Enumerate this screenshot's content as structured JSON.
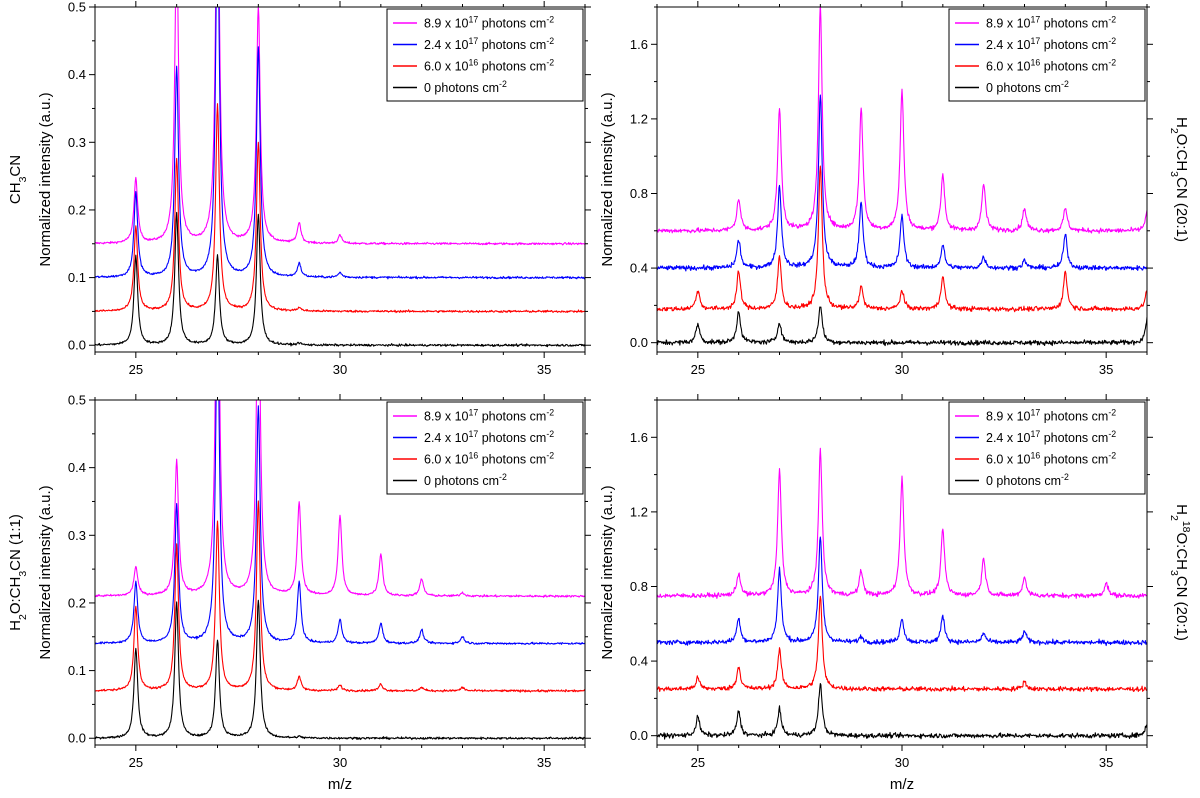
{
  "xlabel": "m/z",
  "chart_data": [
    {
      "type": "line",
      "panel": "top-left",
      "side_label": [
        "CH",
        "3",
        "CN"
      ],
      "xlabel": "",
      "ylabel": "Normalized intensity (a.u.)",
      "xlim": [
        24,
        36
      ],
      "ylim": [
        -0.01,
        0.5
      ],
      "xticks": [
        25,
        30,
        35
      ],
      "yticks": [
        0.0,
        0.1,
        0.2,
        0.3,
        0.4,
        0.5
      ],
      "ytick_labels": [
        "0.0",
        "0.1",
        "0.2",
        "0.3",
        "0.4",
        "0.5"
      ],
      "legend": "top-right",
      "noise": 0.0015,
      "series": [
        {
          "name": [
            "8.9 x 10",
            "17",
            " photons cm",
            "-2"
          ],
          "color": "#ff00ff",
          "baseline": 0.15,
          "peaks": [
            [
              25,
              0.095
            ],
            [
              26,
              0.45
            ],
            [
              27,
              0.6
            ],
            [
              28,
              0.35
            ],
            [
              29,
              0.03
            ],
            [
              30,
              0.012
            ]
          ]
        },
        {
          "name": [
            "2.4 x 10",
            "17",
            " photons cm",
            "-2"
          ],
          "color": "#0000ff",
          "baseline": 0.1,
          "peaks": [
            [
              25,
              0.125
            ],
            [
              26,
              0.31
            ],
            [
              27,
              0.55
            ],
            [
              28,
              0.34
            ],
            [
              29,
              0.02
            ],
            [
              30,
              0.007
            ]
          ]
        },
        {
          "name": [
            "6.0 x 10",
            "16",
            " photons cm",
            "-2"
          ],
          "color": "#ff0000",
          "baseline": 0.05,
          "peaks": [
            [
              25,
              0.125
            ],
            [
              26,
              0.225
            ],
            [
              27,
              0.305
            ],
            [
              28,
              0.25
            ],
            [
              29,
              0.005
            ]
          ]
        },
        {
          "name": [
            "0 photons cm",
            "-2"
          ],
          "color": "#000000",
          "baseline": 0.0,
          "peaks": [
            [
              25,
              0.132
            ],
            [
              26,
              0.195
            ],
            [
              27,
              0.132
            ],
            [
              28,
              0.193
            ],
            [
              29,
              0.003
            ]
          ]
        }
      ]
    },
    {
      "type": "line",
      "panel": "top-right",
      "side_label": [
        "H",
        "2",
        "O:CH",
        "3",
        "CN (20:1)"
      ],
      "xlabel": "",
      "ylabel": "Normalized intensity (a.u.)",
      "xlim": [
        24,
        36
      ],
      "ylim": [
        -0.05,
        1.8
      ],
      "xticks": [
        25,
        30,
        35
      ],
      "yticks": [
        0.0,
        0.4,
        0.8,
        1.2,
        1.6
      ],
      "ytick_labels": [
        "0.0",
        "0.4",
        "0.8",
        "1.2",
        "1.6"
      ],
      "legend": "top-right",
      "noise": 0.012,
      "series": [
        {
          "name": [
            "8.9 x 10",
            "17",
            " photons cm",
            "-2"
          ],
          "color": "#ff00ff",
          "baseline": 0.6,
          "peaks": [
            [
              26,
              0.17
            ],
            [
              27,
              0.65
            ],
            [
              28,
              1.2
            ],
            [
              29,
              0.65
            ],
            [
              30,
              0.75
            ],
            [
              31,
              0.3
            ],
            [
              32,
              0.25
            ],
            [
              33,
              0.12
            ],
            [
              34,
              0.12
            ],
            [
              36,
              0.1
            ]
          ]
        },
        {
          "name": [
            "2.4 x 10",
            "17",
            " photons cm",
            "-2"
          ],
          "color": "#0000ff",
          "baseline": 0.4,
          "peaks": [
            [
              26,
              0.15
            ],
            [
              27,
              0.44
            ],
            [
              28,
              0.93
            ],
            [
              29,
              0.35
            ],
            [
              30,
              0.28
            ],
            [
              31,
              0.12
            ],
            [
              32,
              0.06
            ],
            [
              33,
              0.04
            ],
            [
              34,
              0.18
            ]
          ]
        },
        {
          "name": [
            "6.0 x 10",
            "16",
            " photons cm",
            "-2"
          ],
          "color": "#ff0000",
          "baseline": 0.18,
          "peaks": [
            [
              25,
              0.1
            ],
            [
              26,
              0.2
            ],
            [
              27,
              0.28
            ],
            [
              28,
              0.77
            ],
            [
              29,
              0.12
            ],
            [
              30,
              0.1
            ],
            [
              31,
              0.18
            ],
            [
              34,
              0.2
            ],
            [
              36,
              0.1
            ]
          ]
        },
        {
          "name": [
            "0 photons cm",
            "-2"
          ],
          "color": "#000000",
          "baseline": 0.0,
          "peaks": [
            [
              25,
              0.1
            ],
            [
              26,
              0.17
            ],
            [
              27,
              0.11
            ],
            [
              28,
              0.2
            ],
            [
              36,
              0.12
            ]
          ]
        }
      ]
    },
    {
      "type": "line",
      "panel": "bottom-left",
      "side_label": [
        "H",
        "2",
        "O:CH",
        "3",
        "CN (1:1)"
      ],
      "xlabel": "m/z",
      "ylabel": "Normalized intensity (a.u.)",
      "xlim": [
        24,
        36
      ],
      "ylim": [
        -0.01,
        0.5
      ],
      "xticks": [
        25,
        30,
        35
      ],
      "yticks": [
        0.0,
        0.1,
        0.2,
        0.3,
        0.4,
        0.5
      ],
      "ytick_labels": [
        "0.0",
        "0.1",
        "0.2",
        "0.3",
        "0.4",
        "0.5"
      ],
      "legend": "top-right",
      "noise": 0.0015,
      "series": [
        {
          "name": [
            "8.9 x 10",
            "17",
            " photons cm",
            "-2"
          ],
          "color": "#ff00ff",
          "baseline": 0.21,
          "peaks": [
            [
              25,
              0.043
            ],
            [
              26,
              0.2
            ],
            [
              27,
              0.6
            ],
            [
              28,
              0.5
            ],
            [
              29,
              0.137
            ],
            [
              30,
              0.118
            ],
            [
              31,
              0.062
            ],
            [
              32,
              0.025
            ],
            [
              33,
              0.005
            ]
          ]
        },
        {
          "name": [
            "2.4 x 10",
            "17",
            " photons cm",
            "-2"
          ],
          "color": "#0000ff",
          "baseline": 0.14,
          "peaks": [
            [
              25,
              0.09
            ],
            [
              26,
              0.205
            ],
            [
              27,
              0.5
            ],
            [
              28,
              0.35
            ],
            [
              29,
              0.09
            ],
            [
              30,
              0.035
            ],
            [
              31,
              0.03
            ],
            [
              32,
              0.02
            ],
            [
              33,
              0.01
            ]
          ]
        },
        {
          "name": [
            "6.0 x 10",
            "16",
            " photons cm",
            "-2"
          ],
          "color": "#ff0000",
          "baseline": 0.07,
          "peaks": [
            [
              25,
              0.125
            ],
            [
              26,
              0.215
            ],
            [
              27,
              0.25
            ],
            [
              28,
              0.28
            ],
            [
              29,
              0.02
            ],
            [
              30,
              0.008
            ],
            [
              31,
              0.01
            ],
            [
              32,
              0.005
            ],
            [
              33,
              0.005
            ]
          ]
        },
        {
          "name": [
            "0 photons cm",
            "-2"
          ],
          "color": "#000000",
          "baseline": 0.0,
          "peaks": [
            [
              25,
              0.133
            ],
            [
              26,
              0.2
            ],
            [
              27,
              0.145
            ],
            [
              28,
              0.205
            ],
            [
              29,
              0.002
            ]
          ]
        }
      ]
    },
    {
      "type": "line",
      "panel": "bottom-right",
      "side_label": [
        "H",
        "2",
        "",
        "18",
        "O:CH",
        "3",
        "CN (20:1)"
      ],
      "xlabel": "m/z",
      "ylabel": "Normalized intensity (a.u.)",
      "xlim": [
        24,
        36
      ],
      "ylim": [
        -0.05,
        1.8
      ],
      "xticks": [
        25,
        30,
        35
      ],
      "yticks": [
        0.0,
        0.4,
        0.8,
        1.2,
        1.6
      ],
      "ytick_labels": [
        "0.0",
        "0.4",
        "0.8",
        "1.2",
        "1.6"
      ],
      "legend": "top-right",
      "noise": 0.012,
      "series": [
        {
          "name": [
            "8.9 x 10",
            "17",
            " photons cm",
            "-2"
          ],
          "color": "#ff00ff",
          "baseline": 0.75,
          "peaks": [
            [
              26,
              0.12
            ],
            [
              27,
              0.67
            ],
            [
              28,
              0.78
            ],
            [
              29,
              0.13
            ],
            [
              30,
              0.63
            ],
            [
              31,
              0.35
            ],
            [
              32,
              0.2
            ],
            [
              33,
              0.1
            ],
            [
              35,
              0.07
            ]
          ]
        },
        {
          "name": [
            "2.4 x 10",
            "17",
            " photons cm",
            "-2"
          ],
          "color": "#0000ff",
          "baseline": 0.5,
          "peaks": [
            [
              26,
              0.13
            ],
            [
              27,
              0.39
            ],
            [
              28,
              0.57
            ],
            [
              29,
              0.03
            ],
            [
              30,
              0.13
            ],
            [
              31,
              0.14
            ],
            [
              32,
              0.05
            ],
            [
              33,
              0.06
            ]
          ]
        },
        {
          "name": [
            "6.0 x 10",
            "16",
            " photons cm",
            "-2"
          ],
          "color": "#ff0000",
          "baseline": 0.25,
          "peaks": [
            [
              25,
              0.06
            ],
            [
              26,
              0.12
            ],
            [
              27,
              0.21
            ],
            [
              28,
              0.5
            ],
            [
              33,
              0.04
            ]
          ]
        },
        {
          "name": [
            "0 photons cm",
            "-2"
          ],
          "color": "#000000",
          "baseline": 0.0,
          "peaks": [
            [
              25,
              0.1
            ],
            [
              26,
              0.13
            ],
            [
              27,
              0.14
            ],
            [
              28,
              0.28
            ],
            [
              36,
              0.06
            ]
          ]
        }
      ]
    }
  ]
}
